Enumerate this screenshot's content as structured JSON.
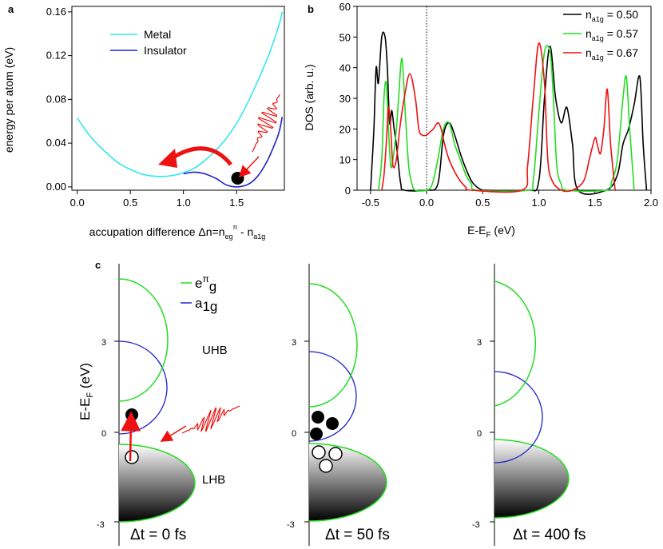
{
  "panel_letters": [
    "a",
    "b",
    "c"
  ],
  "chart_data": [
    {
      "panel": "a",
      "type": "line",
      "xlabel_main": "accupation difference Δn=n",
      "xlabel_sub1": "eg",
      "xlabel_sup1": "π",
      "xlabel_mid": " - n",
      "xlabel_sub2": "a1g",
      "ylabel": "energy per atom (eV)",
      "xlim": [
        -0.05,
        1.95
      ],
      "ylim": [
        -0.003,
        0.165
      ],
      "xticks": [
        "0.0",
        "0.5",
        "1.0",
        "1.5"
      ],
      "xtick_values": [
        0.0,
        0.5,
        1.0,
        1.5
      ],
      "yticks": [
        "0.00",
        "0.04",
        "0.08",
        "0.12",
        "0.16"
      ],
      "ytick_values": [
        0.0,
        0.04,
        0.08,
        0.12,
        0.16
      ],
      "legend_position": "top-center",
      "series": [
        {
          "name": "Metal",
          "color": "#33e6ee",
          "x": [
            0.0,
            0.1,
            0.2,
            0.3,
            0.4,
            0.5,
            0.6,
            0.7,
            0.8,
            0.9,
            1.0,
            1.1,
            1.2,
            1.3,
            1.4,
            1.5,
            1.6,
            1.7,
            1.8,
            1.9,
            1.93
          ],
          "y": [
            0.063,
            0.049,
            0.038,
            0.029,
            0.021,
            0.016,
            0.012,
            0.01,
            0.0095,
            0.0105,
            0.013,
            0.017,
            0.024,
            0.033,
            0.044,
            0.058,
            0.076,
            0.097,
            0.12,
            0.148,
            0.16
          ]
        },
        {
          "name": "Insulator",
          "color": "#2020cc",
          "x": [
            1.0,
            1.1,
            1.2,
            1.3,
            1.35,
            1.4,
            1.45,
            1.5,
            1.55,
            1.6,
            1.65,
            1.7,
            1.75,
            1.8,
            1.85,
            1.9,
            1.93
          ],
          "y": [
            0.012,
            0.0135,
            0.012,
            0.008,
            0.005,
            0.002,
            0.0005,
            0.0,
            0.0005,
            0.002,
            0.005,
            0.01,
            0.017,
            0.026,
            0.037,
            0.05,
            0.064
          ]
        }
      ],
      "marker": {
        "x": 1.51,
        "y": 0.008,
        "color": "#000000"
      }
    },
    {
      "panel": "b",
      "type": "line",
      "xlabel_main": "E-E",
      "xlabel_sub": "F",
      "xlabel_unit": " (eV)",
      "ylabel": "DOS (arb. u.)",
      "xlim": [
        -0.62,
        2.0
      ],
      "ylim": [
        0,
        60
      ],
      "xticks": [
        "-0.5",
        "0.0",
        "0.5",
        "1.0",
        "1.5",
        "2.0"
      ],
      "xtick_values": [
        -0.5,
        0.0,
        0.5,
        1.0,
        1.5,
        2.0
      ],
      "yticks": [
        "0",
        "10",
        "20",
        "30",
        "40",
        "50",
        "60"
      ],
      "ytick_values": [
        0,
        10,
        20,
        30,
        40,
        50,
        60
      ],
      "fermi_line_x": 0.0,
      "legend_position": "top-right",
      "series": [
        {
          "name_main": "n",
          "name_sub": "a1g",
          "name_value": "= 0.50",
          "color": "#000000",
          "x": [
            -0.5,
            -0.47,
            -0.45,
            -0.43,
            -0.4,
            -0.37,
            -0.35,
            -0.33,
            -0.31,
            -0.29,
            -0.27,
            -0.25,
            -0.23,
            -0.2,
            0.0,
            0.1,
            0.15,
            0.2,
            0.25,
            0.3,
            0.35,
            0.4,
            0.45,
            0.5,
            0.53,
            0.9,
            1.0,
            1.05,
            1.1,
            1.15,
            1.2,
            1.25,
            1.3,
            1.35,
            1.6,
            1.7,
            1.75,
            1.8,
            1.85,
            1.9,
            1.93,
            1.96
          ],
          "y": [
            0,
            20,
            40,
            35,
            50,
            50,
            40,
            22,
            26,
            20,
            15,
            8,
            2,
            0,
            0,
            2,
            18,
            22,
            18,
            12,
            7,
            3,
            1,
            0,
            0,
            0,
            3,
            30,
            47,
            30,
            22,
            27,
            15,
            0,
            0,
            5,
            15,
            20,
            28,
            37,
            15,
            0
          ]
        },
        {
          "name_main": "n",
          "name_sub": "a1g",
          "name_value": "= 0.57",
          "color": "#22dd22",
          "x": [
            -0.43,
            -0.4,
            -0.38,
            -0.36,
            -0.34,
            -0.32,
            -0.3,
            -0.27,
            -0.25,
            -0.22,
            -0.19,
            -0.16,
            -0.13,
            -0.1,
            0.0,
            0.05,
            0.1,
            0.15,
            0.2,
            0.25,
            0.3,
            0.35,
            0.4,
            0.45,
            0.9,
            0.95,
            1.0,
            1.05,
            1.1,
            1.13,
            1.16,
            1.2,
            1.25,
            1.6,
            1.65,
            1.7,
            1.75,
            1.78,
            1.81,
            1.85
          ],
          "y": [
            0,
            10,
            30,
            35,
            20,
            8,
            10,
            20,
            30,
            43,
            25,
            8,
            2,
            0,
            0,
            2,
            10,
            20,
            22,
            15,
            10,
            5,
            2,
            0,
            0,
            3,
            25,
            45,
            45,
            30,
            8,
            2,
            0,
            0,
            3,
            10,
            30,
            37,
            20,
            0
          ]
        },
        {
          "name_main": "n",
          "name_sub": "a1g",
          "name_value": "= 0.67",
          "color": "#ee1111",
          "x": [
            -0.4,
            -0.38,
            -0.36,
            -0.34,
            -0.32,
            -0.3,
            -0.27,
            -0.24,
            -0.2,
            -0.15,
            -0.1,
            -0.07,
            -0.04,
            0.0,
            0.03,
            0.06,
            0.1,
            0.13,
            0.16,
            0.2,
            0.25,
            0.3,
            0.35,
            0.4,
            0.85,
            0.9,
            0.95,
            1.0,
            1.05,
            1.08,
            1.12,
            1.2,
            1.3,
            1.4,
            1.45,
            1.5,
            1.52,
            1.55,
            1.58,
            1.61,
            1.64,
            1.68
          ],
          "y": [
            0,
            5,
            15,
            27,
            20,
            8,
            10,
            20,
            30,
            38,
            30,
            20,
            18,
            18,
            19,
            20,
            22,
            20,
            15,
            10,
            6,
            3,
            1,
            0,
            0,
            8,
            30,
            48,
            35,
            10,
            3,
            0,
            0,
            3,
            10,
            17,
            15,
            12,
            20,
            33,
            15,
            0
          ]
        }
      ]
    }
  ],
  "panel_c": {
    "legend": [
      {
        "main": "e",
        "sup": "π",
        "sub": "g",
        "color": "#22dd22"
      },
      {
        "main": "a",
        "sub": "1g",
        "color": "#2020cc"
      }
    ],
    "axis_label_main": "E-E",
    "axis_label_sub": "F",
    "axis_label_unit": " (eV)",
    "tick_labels": [
      "3",
      "0",
      "-3"
    ],
    "band_labels": {
      "upper": "UHB",
      "lower": "LHB"
    },
    "times": [
      "Δt = 0 fs",
      "Δt = 50 fs",
      "Δt = 400 fs"
    ]
  }
}
